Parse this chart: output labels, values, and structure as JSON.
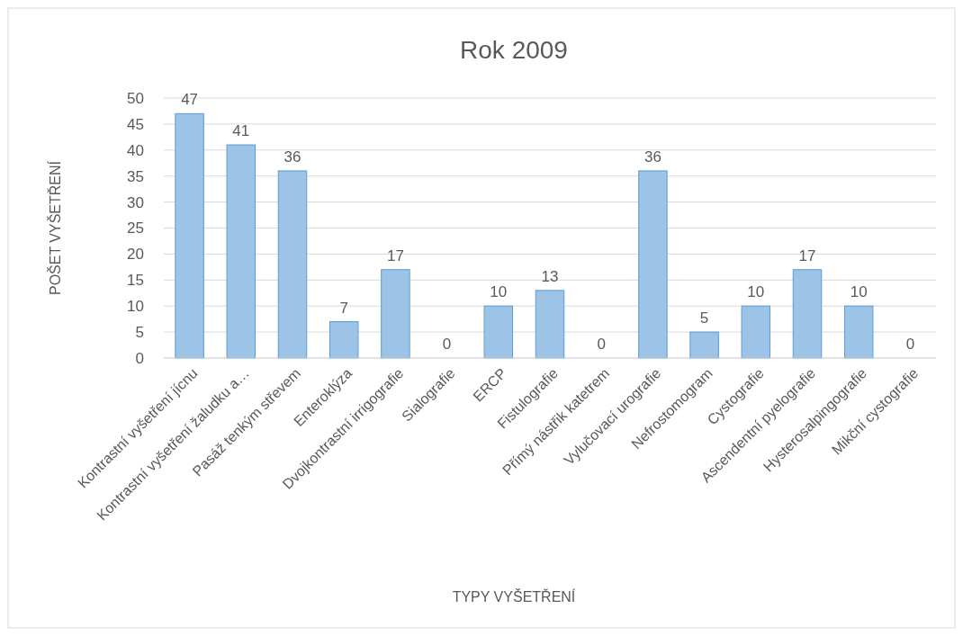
{
  "chart_data": {
    "type": "bar",
    "title": "Rok 2009",
    "xlabel": "TYPY VYŠETŘENÍ",
    "ylabel": "POŠET VYŠETŘENÍ",
    "categories": [
      "Kontrastní vyšetření jícnu",
      "Kontrastní vyšetření žaludku a…",
      "Pasáž tenkým střevem",
      "Enteroklýza",
      "Dvojkontrastní irrigografie",
      "Sialografie",
      "ERCP",
      "Fistulografie",
      "Přímý nástřik katetrem",
      "Vylučovací urografie",
      "Nefrostomogram",
      "Cystografie",
      "Ascendentní pyelografie",
      "Hysterosalpingografie",
      "Mikční cystografie"
    ],
    "values": [
      47,
      41,
      36,
      7,
      17,
      0,
      10,
      13,
      0,
      36,
      5,
      10,
      17,
      10,
      0
    ],
    "color": "#9dc3e6",
    "ylim": [
      0,
      50
    ],
    "yticks": [
      0,
      5,
      10,
      15,
      20,
      25,
      30,
      35,
      40,
      45,
      50
    ],
    "grid": "y",
    "data_labels": true
  }
}
